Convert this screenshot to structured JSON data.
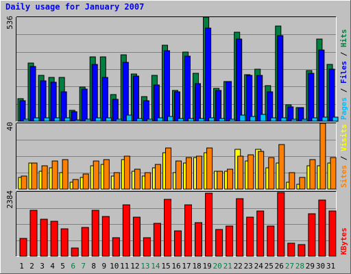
{
  "chart_data": {
    "type": "bar",
    "title": "Daily usage for January 2007",
    "categories": [
      "1",
      "2",
      "3",
      "4",
      "5",
      "6",
      "7",
      "8",
      "9",
      "10",
      "11",
      "12",
      "13",
      "14",
      "15",
      "16",
      "17",
      "18",
      "19",
      "20",
      "21",
      "22",
      "23",
      "24",
      "25",
      "26",
      "27",
      "28",
      "29",
      "30",
      "31"
    ],
    "weekend_days": [
      "6",
      "7",
      "13",
      "14",
      "20",
      "21",
      "27",
      "28"
    ],
    "panels": [
      {
        "id": "top",
        "ymax_label": "536",
        "ylim": [
          0,
          536
        ],
        "legend": [
          {
            "text": "Pages",
            "color": "#00c0ff"
          },
          {
            "text": " / ",
            "color": "#000000"
          },
          {
            "text": "Files",
            "color": "#0000ff"
          },
          {
            "text": " / ",
            "color": "#000000"
          },
          {
            "text": "Hits",
            "color": "#008040"
          }
        ],
        "series": [
          {
            "name": "Hits",
            "color": "#008040",
            "values": [
              115,
              298,
              236,
              224,
              226,
              57,
              175,
              331,
              330,
              138,
              342,
              245,
              126,
              235,
              392,
              159,
              357,
              247,
              536,
              168,
              206,
              457,
              240,
              267,
              184,
              490,
              84,
              71,
              262,
              422,
              292
            ]
          },
          {
            "name": "Files",
            "color": "#0000ff",
            "values": [
              105,
              282,
              208,
              200,
              152,
              48,
              165,
              292,
              225,
              113,
              303,
              233,
              105,
              186,
              364,
              151,
              336,
              195,
              478,
              160,
              206,
              423,
              236,
              238,
              150,
              442,
              75,
              69,
              248,
              367,
              268
            ]
          },
          {
            "name": "Pages",
            "color": "#00c0ff",
            "values": [
              9,
              17,
              17,
              18,
              18,
              8,
              12,
              16,
              18,
              11,
              32,
              15,
              12,
              17,
              23,
              14,
              15,
              14,
              18,
              14,
              12,
              32,
              23,
              37,
              17,
              18,
              11,
              9,
              16,
              21,
              21
            ]
          }
        ]
      },
      {
        "id": "middle",
        "ymax_label": "40",
        "ylim": [
          0,
          40
        ],
        "legend": [
          {
            "text": "Sites",
            "color": "#ff8000"
          },
          {
            "text": " / ",
            "color": "#000000"
          },
          {
            "text": "Visits",
            "color": "#ffff00"
          }
        ],
        "series": [
          {
            "name": "Visits",
            "color": "#ffff00",
            "values": [
              7,
              16,
              11,
              13,
              10,
              4,
              7,
              14,
              15,
              8,
              18,
              11,
              8,
              13,
              22,
              10,
              16,
              19,
              22,
              11,
              11,
              24,
              17,
              24,
              13,
              16,
              4,
              3,
              14,
              14,
              16
            ]
          },
          {
            "name": "Sites",
            "color": "#ff8000",
            "values": [
              8,
              16,
              14,
              17,
              18,
              6,
              9,
              17,
              18,
              10,
              20,
              12,
              10,
              15,
              25,
              17,
              19,
              20,
              25,
              11,
              12,
              20,
              21,
              23,
              19,
              27,
              10,
              7,
              18,
              40,
              19
            ]
          }
        ]
      },
      {
        "id": "bottom",
        "ymax_label": "2384",
        "ylim": [
          0,
          2384
        ],
        "legend": [
          {
            "text": "KBytes",
            "color": "#ff0000"
          }
        ],
        "series": [
          {
            "name": "KBytes",
            "color": "#ff0000",
            "values": [
              670,
              1700,
              1380,
              1290,
              1020,
              300,
              1060,
              1710,
              1480,
              690,
              1890,
              1450,
              680,
              1210,
              2110,
              950,
              1910,
              1250,
              2340,
              990,
              1120,
              2130,
              1450,
              1680,
              1110,
              2370,
              470,
              430,
              1560,
              2070,
              1670
            ]
          }
        ]
      }
    ]
  }
}
